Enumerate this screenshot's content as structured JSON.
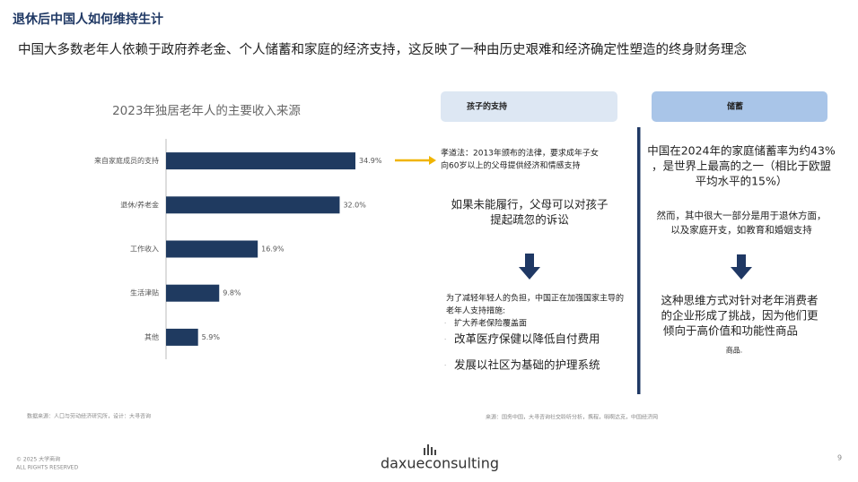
{
  "header": {
    "title": "退休后中国人如何维持生计",
    "subtitle": "中国大多数老年人依赖于政府养老金、个人储蓄和家庭的经济支持，这反映了一种由历史艰难和经济确定性塑造的终身财务理念"
  },
  "chart_data": {
    "type": "bar",
    "orientation": "horizontal",
    "title": "2023年独居老年人的主要收入来源",
    "categories": [
      "来自家庭成员的支持",
      "退休/养老金",
      "工作收入",
      "生活津贴",
      "其他"
    ],
    "values": [
      34.9,
      32.0,
      16.9,
      9.8,
      5.9
    ],
    "value_labels": [
      "34.9%",
      "32.0%",
      "16.9%",
      "9.8%",
      "5.9%"
    ],
    "color": "#1f3a60",
    "source": "数据来源：人口与劳动经济研究所，设计：大寻咨询"
  },
  "panels": [
    {
      "title": "孩子的支持",
      "law": [
        "孝道法：2013年颁布的法律，要求成年子女",
        "向60岁以上的父母提供经济和情感支持"
      ],
      "consequence": [
        "如果未能履行，父母可以对孩子",
        "提起疏忽的诉讼"
      ],
      "measures_intro": [
        "为了减轻年轻人的负担，中国正在加强国家主导的",
        "老年人支持措施:"
      ],
      "measures": [
        "扩大养老保险覆盖面",
        "改革医疗保健以降低自付费用",
        "发展以社区为基础的护理系统"
      ],
      "source": "来源：国务中国，大寻咨询社交聆听分析，携程，哨啊达克，中国经济网"
    },
    {
      "title": "储蓄",
      "fact": [
        "中国在2024年的家庭储蓄率为约43%",
        "，是世界上最高的之一（相比于欧盟",
        "平均水平的15%）"
      ],
      "usage": [
        "然而，其中很大一部分是用于退休方面，",
        "以及家庭开支，如教育和婚姻支持"
      ],
      "conclusion": [
        "这种思维方式对针对老年消费者",
        "的企业形成了挑战，因为他们更",
        "倾向于高价值和功能性商品",
        "商品."
      ]
    }
  ],
  "footer": {
    "copyright": "© 2025 大学商询",
    "rights": "ALL RIGHTS RESERVED",
    "logo": "daxueconsulting",
    "page": "9"
  }
}
